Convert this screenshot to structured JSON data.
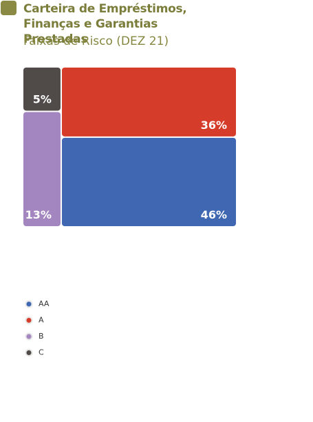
{
  "chart_data": {
    "type": "treemap",
    "title": "Carteira de Empréstimos, Finanças e Garantias Prestadas",
    "subtitle": "Faixas de Risco (DEZ 21)",
    "categories": [
      "AA",
      "A",
      "B",
      "C"
    ],
    "values": [
      46,
      36,
      13,
      5
    ],
    "value_labels": [
      "46%",
      "36%",
      "13%",
      "5%"
    ],
    "colors": [
      "#4068b2",
      "#d63c2a",
      "#a386c0",
      "#504a48"
    ]
  }
}
